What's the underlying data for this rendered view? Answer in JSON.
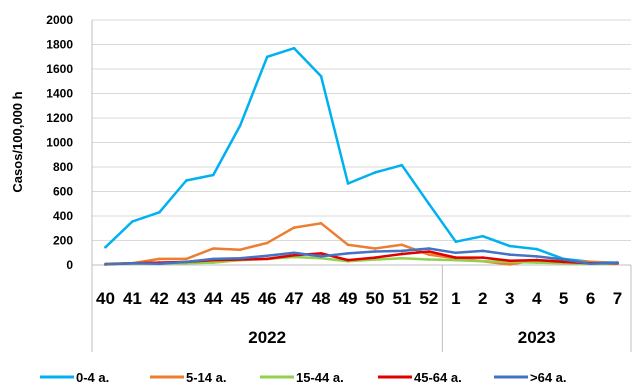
{
  "chart_data": {
    "type": "line",
    "ylabel": "Casos/100,000 h",
    "ylim": [
      0,
      2000
    ],
    "yticks": [
      "0",
      "200",
      "400",
      "600",
      "800",
      "1000",
      "1200",
      "1400",
      "1600",
      "1800",
      "2000"
    ],
    "grid": true,
    "legend_position": "bottom",
    "categories": [
      "40",
      "41",
      "42",
      "43",
      "44",
      "45",
      "46",
      "47",
      "48",
      "49",
      "50",
      "51",
      "52",
      "1",
      "2",
      "3",
      "4",
      "5",
      "6",
      "7"
    ],
    "year_groups": [
      {
        "label": "2022",
        "start": 0,
        "end": 12
      },
      {
        "label": "2023",
        "start": 13,
        "end": 19
      }
    ],
    "series": [
      {
        "name": "0-4 a.",
        "color": "#00B0F0",
        "values": [
          145,
          355,
          430,
          690,
          735,
          1140,
          1700,
          1770,
          1540,
          665,
          755,
          815,
          500,
          190,
          235,
          155,
          130,
          50,
          25,
          20
        ]
      },
      {
        "name": "5-14 a.",
        "color": "#ED7D31",
        "values": [
          10,
          15,
          50,
          50,
          135,
          125,
          180,
          305,
          340,
          165,
          135,
          165,
          85,
          55,
          30,
          5,
          40,
          30,
          25,
          15
        ]
      },
      {
        "name": "15-44 a.",
        "color": "#92D050",
        "values": [
          5,
          10,
          15,
          15,
          20,
          40,
          50,
          65,
          55,
          30,
          45,
          55,
          45,
          40,
          30,
          25,
          20,
          15,
          10,
          10
        ]
      },
      {
        "name": "45-64 a.",
        "color": "#E00000",
        "values": [
          5,
          15,
          20,
          25,
          40,
          45,
          50,
          80,
          95,
          40,
          60,
          90,
          110,
          60,
          60,
          35,
          40,
          25,
          15,
          15
        ]
      },
      {
        "name": ">64 a.",
        "color": "#4472C4",
        "values": [
          5,
          15,
          10,
          25,
          50,
          55,
          75,
          100,
          70,
          95,
          110,
          115,
          135,
          100,
          115,
          85,
          70,
          45,
          10,
          20
        ]
      }
    ]
  }
}
